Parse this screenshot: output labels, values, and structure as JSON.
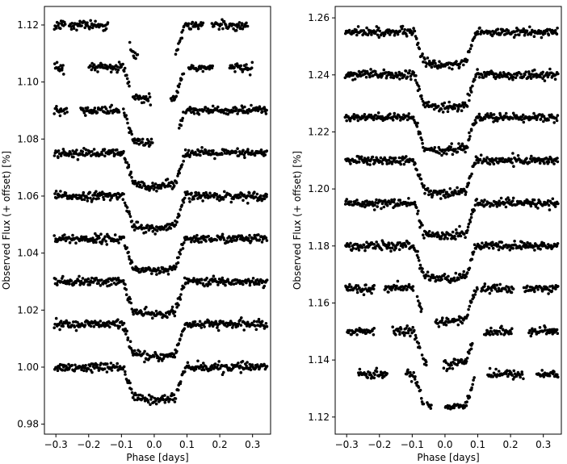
{
  "chart_data": [
    {
      "type": "scatter",
      "xlabel": "Phase [days]",
      "ylabel": "Observed Flux (+ offset) [%]",
      "xlim": [
        -0.335,
        0.355
      ],
      "ylim": [
        0.9765,
        1.1265
      ],
      "x_ticks": [
        -0.3,
        -0.2,
        -0.1,
        0.0,
        0.1,
        0.2,
        0.3
      ],
      "x_tick_labels": [
        "−0.3",
        "−0.2",
        "−0.1",
        "0.0",
        "0.1",
        "0.2",
        "0.3"
      ],
      "y_ticks": [
        0.98,
        1.0,
        1.02,
        1.04,
        1.06,
        1.08,
        1.1,
        1.12
      ],
      "y_tick_labels": [
        "0.98",
        "1.00",
        "1.02",
        "1.04",
        "1.06",
        "1.08",
        "1.10",
        "1.12"
      ],
      "grid": false,
      "transit": {
        "ingress": -0.08,
        "egress": 0.08,
        "edge_width": 0.014
      },
      "light_curves": [
        {
          "baseline": 1.0,
          "depth": 0.0115
        },
        {
          "baseline": 1.015,
          "depth": 0.0115
        },
        {
          "baseline": 1.03,
          "depth": 0.0115
        },
        {
          "baseline": 1.045,
          "depth": 0.0115
        },
        {
          "baseline": 1.06,
          "depth": 0.0115
        },
        {
          "baseline": 1.075,
          "depth": 0.0115
        },
        {
          "baseline": 1.09,
          "depth": 0.0115,
          "coverage": [
            [
              -0.305,
              -0.265
            ],
            [
              -0.225,
              -0.105
            ],
            [
              -0.095,
              -0.005
            ],
            [
              0.075,
              0.09
            ],
            [
              0.095,
              0.345
            ]
          ]
        },
        {
          "baseline": 1.105,
          "depth": 0.0115,
          "coverage": [
            [
              -0.305,
              -0.275
            ],
            [
              -0.2,
              -0.075
            ],
            [
              -0.065,
              -0.01
            ],
            [
              0.05,
              0.09
            ],
            [
              0.105,
              0.18
            ],
            [
              0.23,
              0.3
            ]
          ]
        },
        {
          "baseline": 1.12,
          "depth": 0.0115,
          "coverage": [
            [
              -0.305,
              -0.27
            ],
            [
              -0.26,
              -0.14
            ],
            [
              -0.075,
              -0.05
            ],
            [
              0.065,
              0.15
            ],
            [
              0.175,
              0.285
            ]
          ]
        }
      ]
    },
    {
      "type": "scatter",
      "xlabel": "Phase [days]",
      "ylabel": "Observed Flux (+ offset) [%]",
      "xlim": [
        -0.335,
        0.355
      ],
      "ylim": [
        1.114,
        1.264
      ],
      "x_ticks": [
        -0.3,
        -0.2,
        -0.1,
        0.0,
        0.1,
        0.2,
        0.3
      ],
      "x_tick_labels": [
        "−0.3",
        "−0.2",
        "−0.1",
        "0.0",
        "0.1",
        "0.2",
        "0.3"
      ],
      "y_ticks": [
        1.12,
        1.14,
        1.16,
        1.18,
        1.2,
        1.22,
        1.24,
        1.26
      ],
      "y_tick_labels": [
        "1.12",
        "1.14",
        "1.16",
        "1.18",
        "1.20",
        "1.22",
        "1.24",
        "1.26"
      ],
      "grid": false,
      "transit": {
        "ingress": -0.08,
        "egress": 0.08,
        "edge_width": 0.014
      },
      "light_curves": [
        {
          "baseline": 1.135,
          "depth": 0.0115,
          "coverage": [
            [
              -0.265,
              -0.175
            ],
            [
              -0.12,
              -0.065
            ],
            [
              -0.055,
              -0.04
            ],
            [
              0.0,
              0.09
            ],
            [
              0.13,
              0.24
            ],
            [
              0.28,
              0.345
            ]
          ]
        },
        {
          "baseline": 1.15,
          "depth": 0.0115,
          "coverage": [
            [
              -0.3,
              -0.215
            ],
            [
              -0.16,
              -0.075
            ],
            [
              -0.07,
              -0.055
            ],
            [
              -0.005,
              0.085
            ],
            [
              0.12,
              0.205
            ],
            [
              0.255,
              0.345
            ]
          ]
        },
        {
          "baseline": 1.165,
          "depth": 0.0115,
          "coverage": [
            [
              -0.305,
              -0.215
            ],
            [
              -0.185,
              -0.095
            ],
            [
              -0.085,
              -0.07
            ],
            [
              -0.03,
              0.1
            ],
            [
              0.11,
              0.21
            ],
            [
              0.24,
              0.345
            ]
          ]
        },
        {
          "baseline": 1.18,
          "depth": 0.0115
        },
        {
          "baseline": 1.195,
          "depth": 0.0115
        },
        {
          "baseline": 1.21,
          "depth": 0.0115
        },
        {
          "baseline": 1.225,
          "depth": 0.0115
        },
        {
          "baseline": 1.24,
          "depth": 0.0115
        },
        {
          "baseline": 1.255,
          "depth": 0.0115
        }
      ]
    }
  ]
}
